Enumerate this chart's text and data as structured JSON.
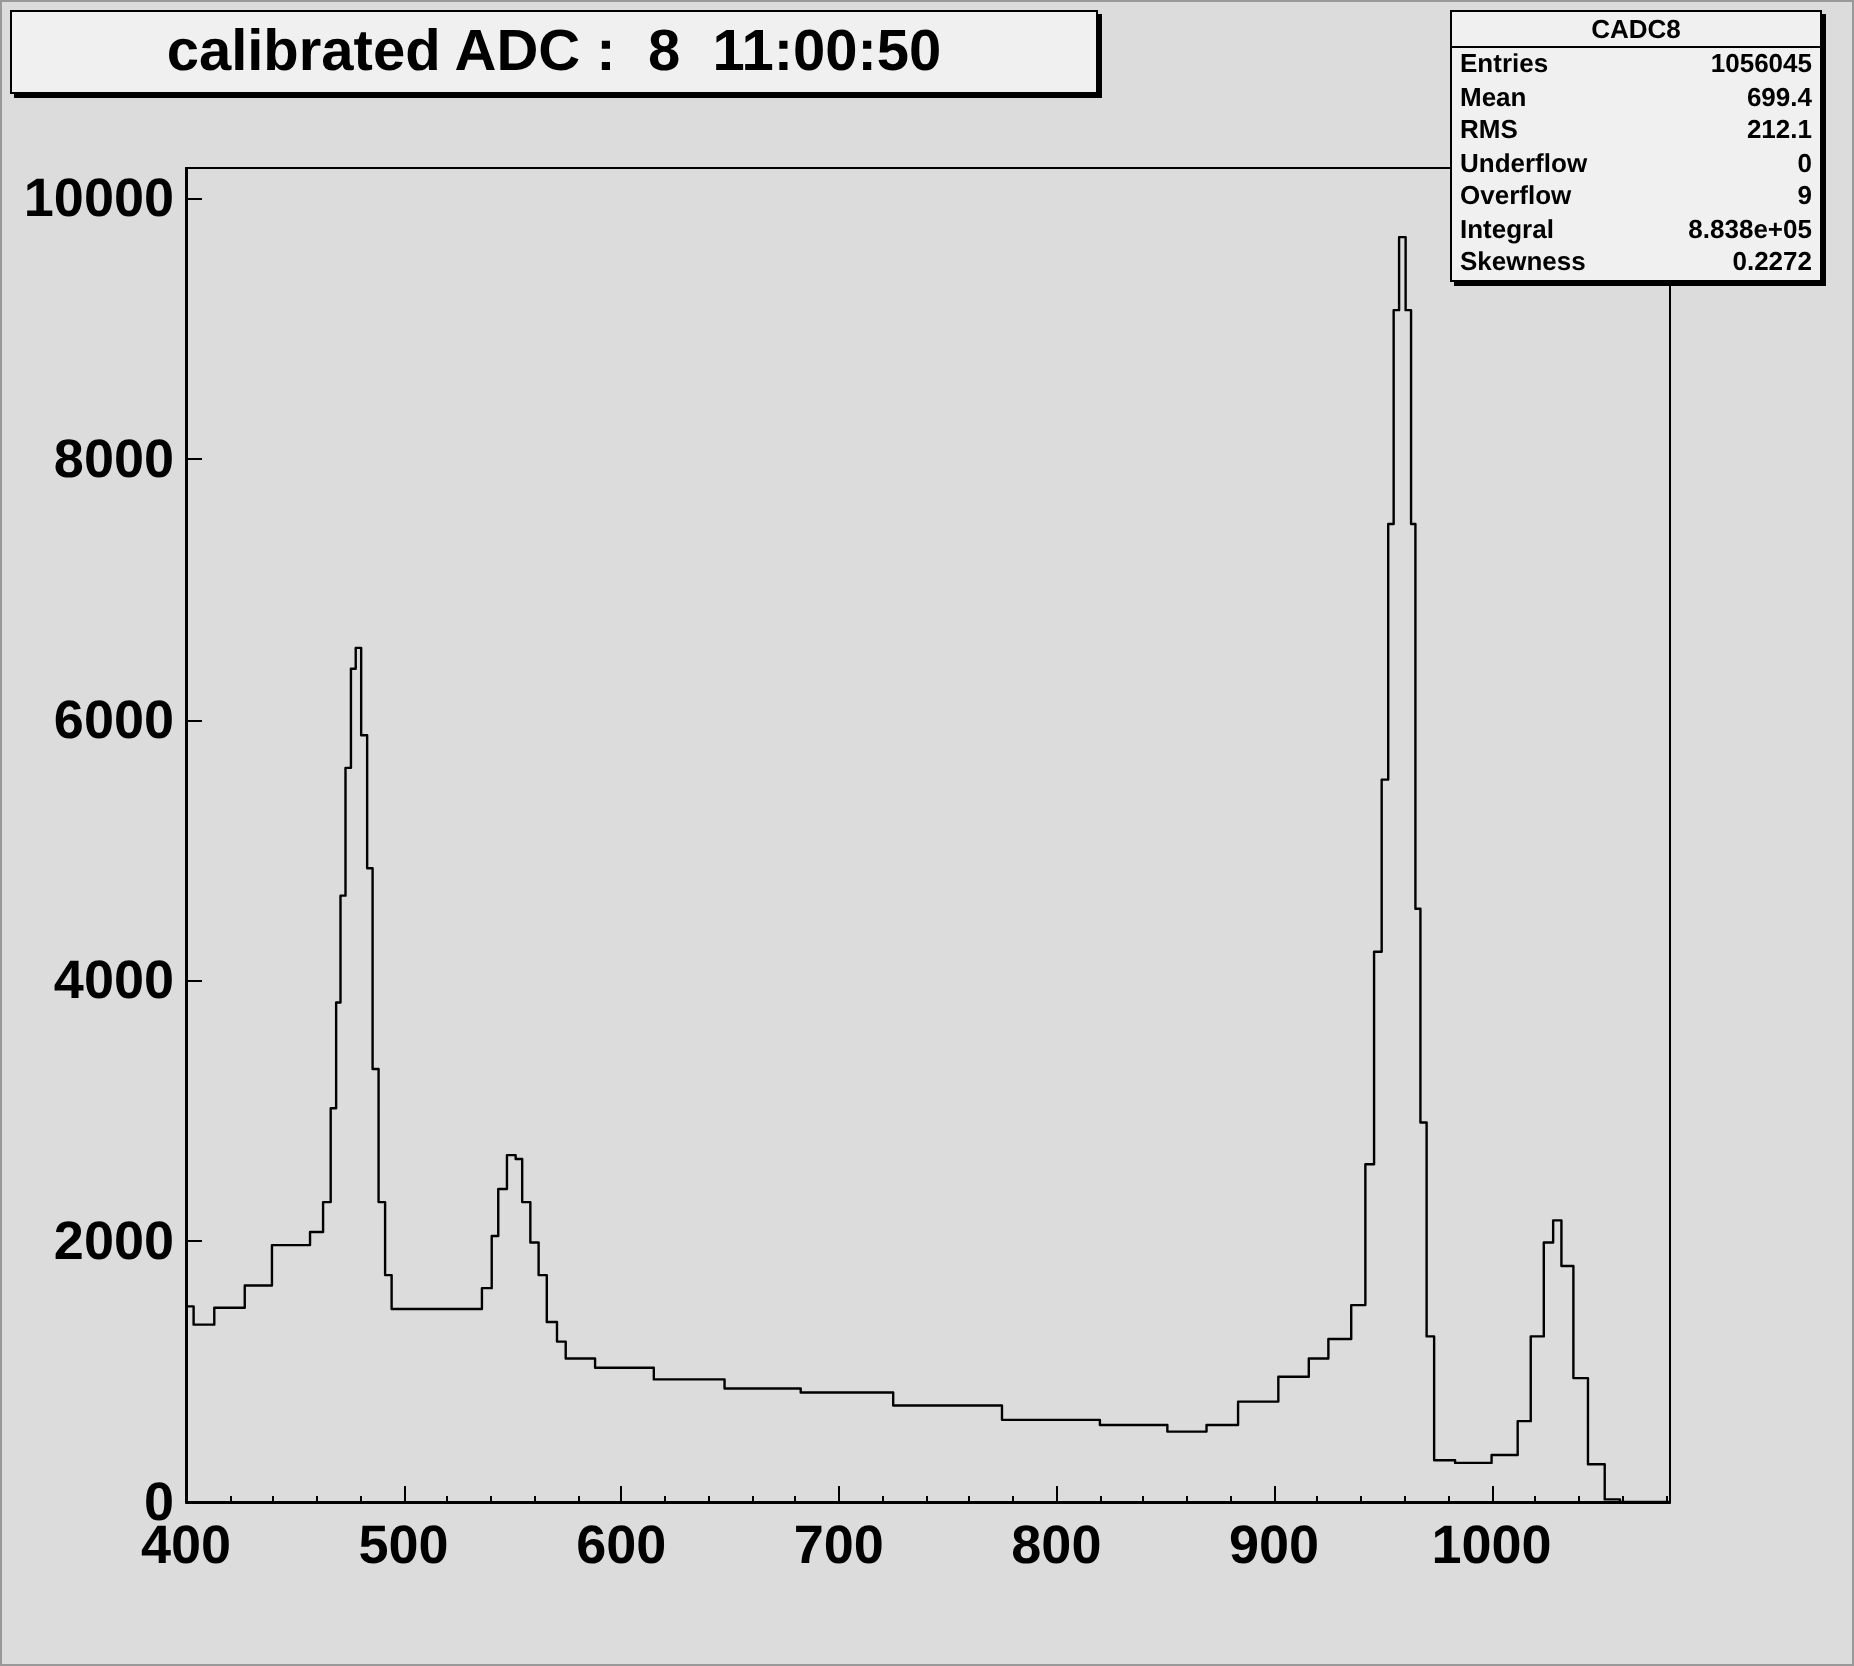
{
  "chart_data": {
    "type": "step",
    "title": "calibrated ADC :  8  11:00:50",
    "annotations": [
      "CADC8",
      "Entries",
      "1056045",
      "Mean",
      "699.4",
      "RMS",
      "212.1",
      "Underflow",
      "0",
      "Overflow",
      "9",
      "Integral",
      "8.838e+05",
      "Skewness",
      "0.2272"
    ],
    "x": [
      400,
      407,
      419,
      435,
      444,
      453,
      461,
      465,
      468,
      470,
      472,
      474.6,
      477,
      479,
      482,
      484.5,
      487,
      490,
      493,
      496,
      515,
      533,
      539,
      542,
      545,
      550,
      553,
      556,
      560.5,
      563.6,
      568,
      573,
      576,
      600,
      630,
      665,
      700,
      750,
      800,
      840,
      862,
      876,
      891,
      913,
      919,
      931,
      940,
      944,
      948,
      951,
      954,
      956,
      959,
      962,
      964,
      966,
      968.6,
      971.7,
      975.5,
      991,
      1009,
      1015,
      1021,
      1027,
      1029.6,
      1034.6,
      1040.6,
      1048,
      1056,
      1062,
      1082
    ],
    "values": [
      1500,
      1360,
      1490,
      1660,
      1970,
      1970,
      2070,
      2300,
      3020,
      3830,
      4650,
      5630,
      6390,
      6550,
      5880,
      4860,
      3320,
      2300,
      1740,
      1480,
      1480,
      1480,
      1640,
      2040,
      2400,
      2660,
      2630,
      2300,
      1990,
      1740,
      1380,
      1230,
      1100,
      1030,
      940,
      870,
      840,
      740,
      630,
      590,
      540,
      590,
      770,
      960,
      1100,
      1250,
      1510,
      2590,
      4220,
      5540,
      7500,
      9140,
      9700,
      9140,
      7500,
      4550,
      2910,
      1270,
      320,
      300,
      360,
      620,
      1270,
      1990,
      2160,
      1810,
      950,
      290,
      20,
      0,
      0
    ],
    "color": "#000000",
    "xlim": [
      400,
      1082
    ],
    "ylim": [
      0,
      10230
    ],
    "xticks": [
      400,
      500,
      600,
      700,
      800,
      900,
      1000
    ],
    "yticks": [
      0,
      2000,
      4000,
      6000,
      8000,
      10000
    ]
  }
}
